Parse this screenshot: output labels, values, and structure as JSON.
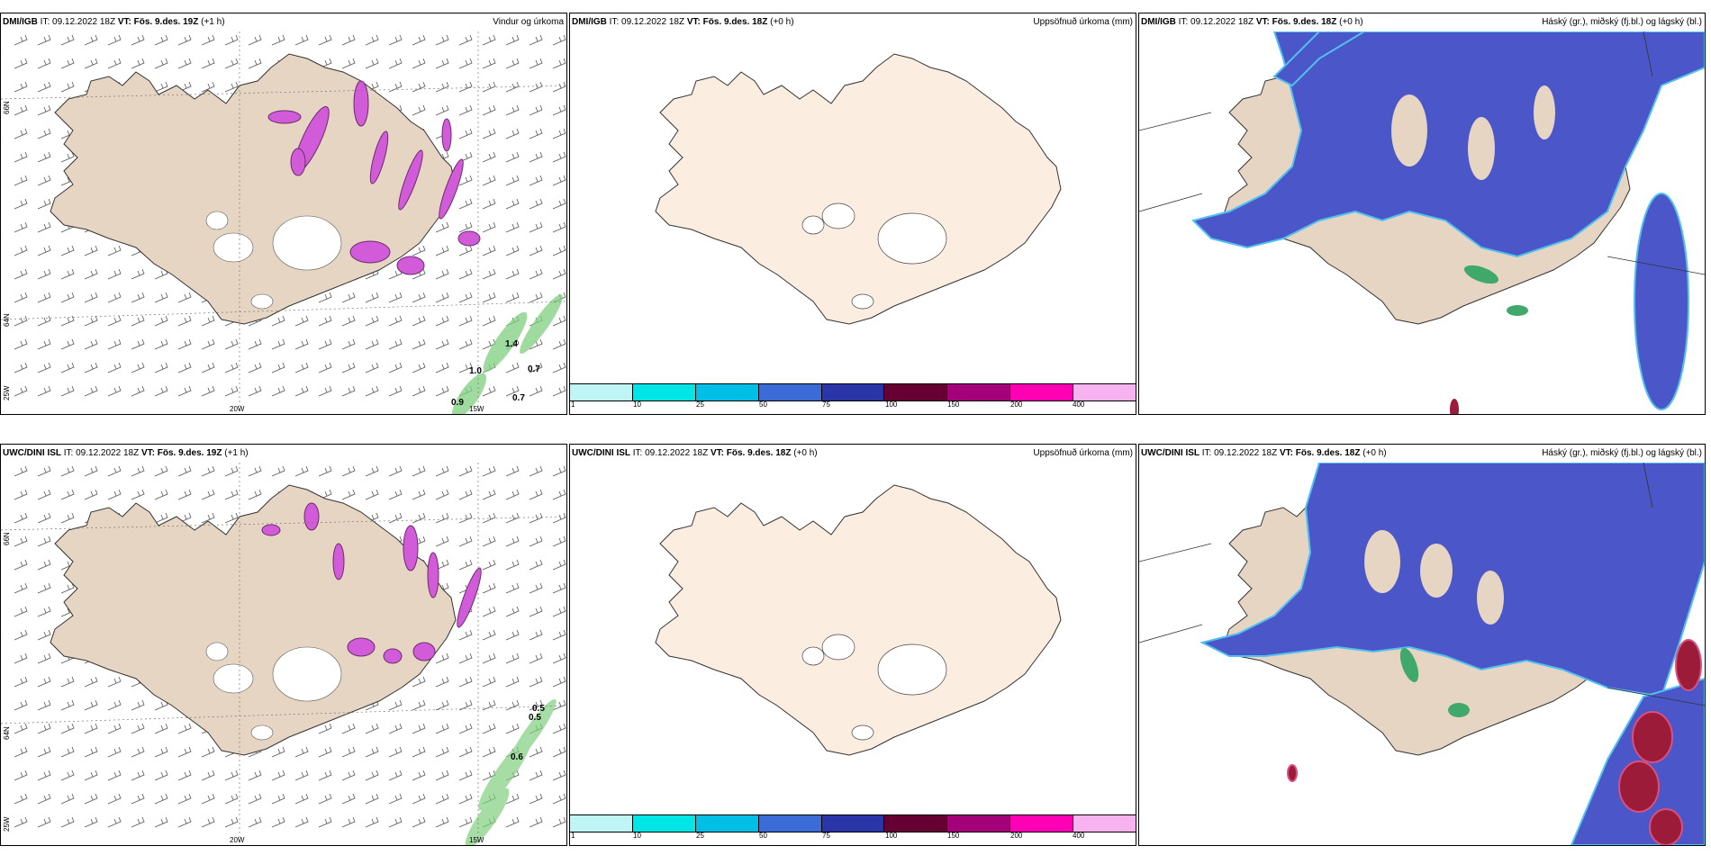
{
  "panels": [
    {
      "model": "DMI/IGB",
      "it_text": "IT: 09.12.2022 18Z",
      "vt_label": "VT:",
      "vt_value": "Fös. 9.des. 19Z",
      "lead": "(+1 h)",
      "title": "Vindur og úrkoma",
      "lon_labels": [
        "20W",
        "15W"
      ],
      "lat_labels": [
        "66N",
        "64N",
        "25W"
      ],
      "value_labels": [
        "1.4",
        "0.7",
        "1.0",
        "0.9",
        "0.7"
      ]
    },
    {
      "model": "DMI/IGB",
      "it_text": "IT: 09.12.2022 18Z",
      "vt_label": "VT:",
      "vt_value": "Fös. 9.des. 18Z",
      "lead": "(+0 h)",
      "title": "Uppsöfnuð úrkoma (mm)"
    },
    {
      "model": "DMI/IGB",
      "it_text": "IT: 09.12.2022 18Z",
      "vt_label": "VT:",
      "vt_value": "Fös. 9.des. 18Z",
      "lead": "(+0 h)",
      "title": "Háský (gr.), miðský (fj.bl.) og lágský (bl.)"
    },
    {
      "model": "UWC/DINI ISL",
      "it_text": "IT: 09.12.2022 18Z",
      "vt_label": "VT:",
      "vt_value": "Fös. 9.des. 19Z",
      "lead": "(+1 h)",
      "title": "",
      "lon_labels": [
        "20W",
        "15W"
      ],
      "lat_labels": [
        "66N",
        "64N",
        "25W"
      ],
      "value_labels": [
        "0.5",
        "0.5",
        "0.6"
      ]
    },
    {
      "model": "UWC/DINI ISL",
      "it_text": "IT: 09.12.2022 18Z",
      "vt_label": "VT:",
      "vt_value": "Fös. 9.des. 18Z",
      "lead": "(+0 h)",
      "title": "Uppsöfnuð úrkoma (mm)"
    },
    {
      "model": "UWC/DINI ISL",
      "it_text": "IT: 09.12.2022 18Z",
      "vt_label": "VT:",
      "vt_value": "Fös. 9.des. 18Z",
      "lead": "(+0 h)",
      "title": "Háský (gr.), miðský (fj.bl.) og lágský (bl.)"
    }
  ],
  "precip_colorbar": {
    "colors": [
      "#bff5f5",
      "#00e5e5",
      "#00bfe6",
      "#3b6bd6",
      "#2a35a8",
      "#660033",
      "#a3007a",
      "#ff00b4",
      "#f7b3f0"
    ],
    "labels": [
      "1",
      "10",
      "25",
      "50",
      "75",
      "100",
      "150",
      "200",
      "400"
    ]
  },
  "colors": {
    "land": "#e6d5c3",
    "land_plain": "#fbeee0",
    "precip_pink": "#d15bd8",
    "precip_purple": "#6b2d6b",
    "precip_green": "#7fd07f",
    "cloud_blue": "#4b56c8",
    "cloud_light": "#52c0ee",
    "cloud_green": "#3fa86a",
    "cloud_red": "#9b1b38"
  }
}
